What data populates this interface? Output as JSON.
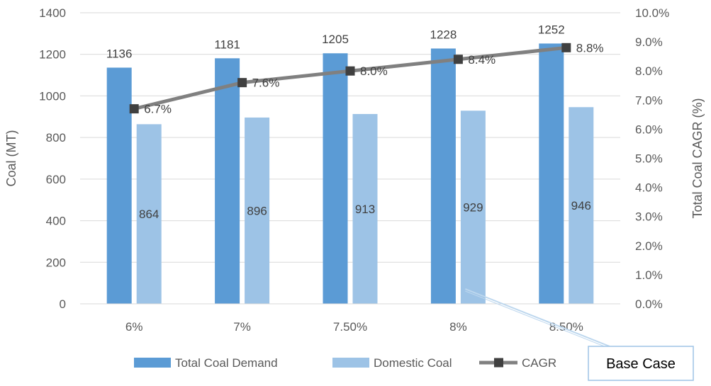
{
  "chart_data": {
    "type": "bar",
    "categories": [
      "6%",
      "7%",
      "7.50%",
      "8%",
      "8.50%"
    ],
    "series": [
      {
        "name": "Total Coal Demand",
        "kind": "bar",
        "axis": "left",
        "color": "#5B9BD5",
        "values": [
          1136,
          1181,
          1205,
          1228,
          1252
        ],
        "labels": [
          "1136",
          "1181",
          "1205",
          "1228",
          "1252"
        ]
      },
      {
        "name": "Domestic Coal",
        "kind": "bar",
        "axis": "left",
        "color": "#9DC3E6",
        "values": [
          864,
          896,
          913,
          929,
          946
        ],
        "labels": [
          "864",
          "896",
          "913",
          "929",
          "946"
        ]
      },
      {
        "name": "CAGR",
        "kind": "line",
        "axis": "right",
        "color": "#808080",
        "marker_color": "#404040",
        "values": [
          6.7,
          7.6,
          8.0,
          8.4,
          8.8
        ],
        "labels": [
          "6.7%",
          "7.6%",
          "8.0%",
          "8.4%",
          "8.8%"
        ]
      }
    ],
    "ylabel": "Coal (MT)",
    "y2label": "Total Coal  CAGR (%)",
    "ylim": [
      0,
      1400
    ],
    "y2lim": [
      0,
      10
    ],
    "y_ticks": [
      "0",
      "200",
      "400",
      "600",
      "800",
      "1000",
      "1200",
      "1400"
    ],
    "y2_ticks": [
      "0.0%",
      "1.0%",
      "2.0%",
      "3.0%",
      "4.0%",
      "5.0%",
      "6.0%",
      "7.0%",
      "8.0%",
      "9.0%",
      "10.0%"
    ],
    "grid": true,
    "legend_position": "bottom",
    "annotation": {
      "text": "Base Case",
      "points_to": "8%"
    }
  }
}
